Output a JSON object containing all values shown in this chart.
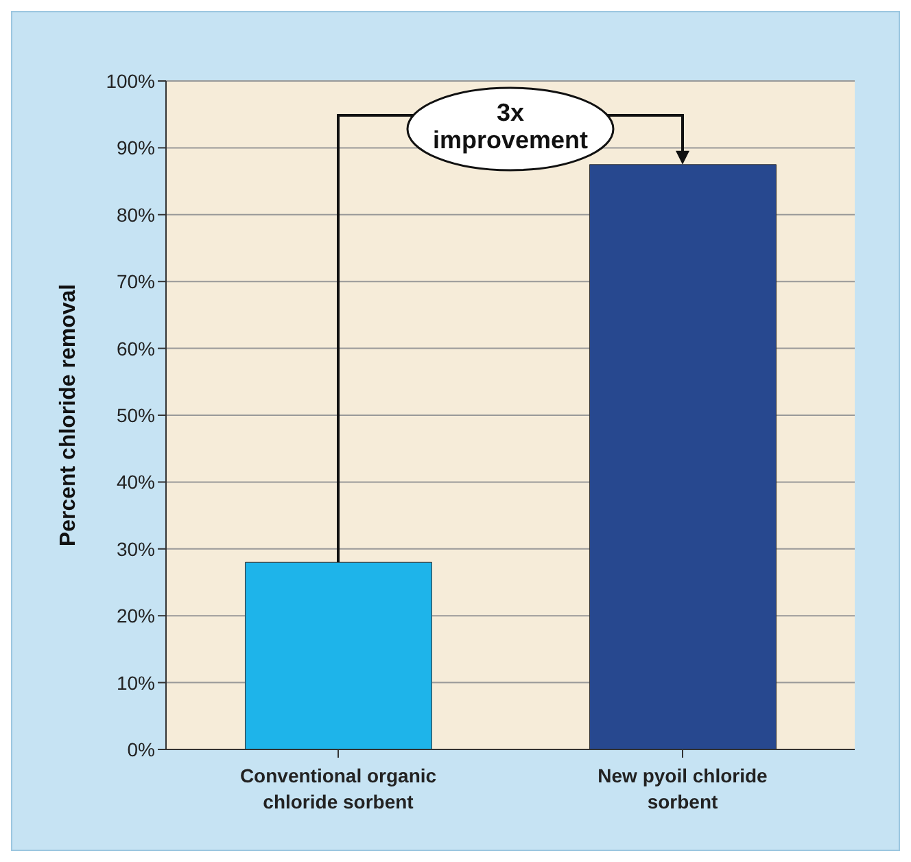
{
  "chart_data": {
    "type": "bar",
    "ylabel": "Percent chloride removal",
    "categories": [
      "Conventional organic chloride sorbent",
      "New pyoil chloride sorbent"
    ],
    "values": [
      28,
      87.5
    ],
    "colors": [
      "#1eb4ea",
      "#27488f"
    ],
    "ylim": [
      0,
      100
    ],
    "yticks": [
      {
        "value": 0,
        "label": "0%"
      },
      {
        "value": 10,
        "label": "10%"
      },
      {
        "value": 20,
        "label": "20%"
      },
      {
        "value": 30,
        "label": "30%"
      },
      {
        "value": 40,
        "label": "40%"
      },
      {
        "value": 50,
        "label": "50%"
      },
      {
        "value": 60,
        "label": "60%"
      },
      {
        "value": 70,
        "label": "70%"
      },
      {
        "value": 80,
        "label": "80%"
      },
      {
        "value": 90,
        "label": "90%"
      },
      {
        "value": 100,
        "label": "100%"
      }
    ],
    "grid": "y",
    "annotations": [
      "3x improvement"
    ]
  }
}
